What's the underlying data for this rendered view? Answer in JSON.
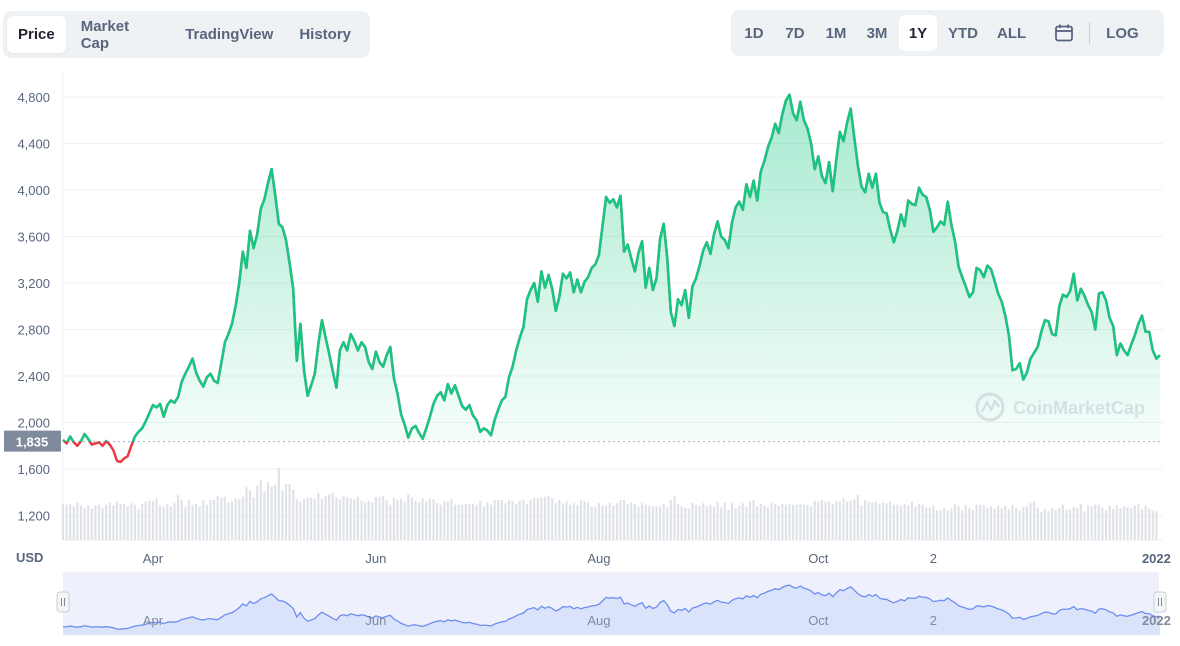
{
  "tabs": [
    "Price",
    "Market Cap",
    "TradingView",
    "History"
  ],
  "ranges": [
    "1D",
    "7D",
    "1M",
    "3M",
    "1Y",
    "YTD",
    "ALL"
  ],
  "log_label": "LOG",
  "currency_label": "USD",
  "watermark": "CoinMarketCap",
  "colors": {
    "up": "#16c784",
    "down": "#ea3943",
    "nav_line": "#6d8df0",
    "nav_fill": "#dbe3fb"
  },
  "chart_data": {
    "type": "area",
    "ylim": [
      1500,
      4900
    ],
    "yticks": [
      1200,
      1600,
      2000,
      2400,
      2800,
      3200,
      3600,
      4000,
      4400,
      4800
    ],
    "ytick_labels": [
      "1,200",
      "1,600",
      "2,000",
      "2,400",
      "2,800",
      "3,200",
      "3,600",
      "4,000",
      "4,400",
      "4,800"
    ],
    "reference_price": 1835,
    "reference_label": "1,835",
    "xtick_labels": [
      "Apr",
      "Jun",
      "Aug",
      "Oct",
      "2",
      "2022"
    ],
    "xtick_index": [
      25,
      87,
      149,
      210,
      242,
      304
    ],
    "price": [
      1850,
      1820,
      1880,
      1830,
      1800,
      1840,
      1900,
      1860,
      1810,
      1820,
      1830,
      1800,
      1840,
      1810,
      1760,
      1670,
      1660,
      1690,
      1710,
      1800,
      1880,
      1920,
      1950,
      2010,
      2080,
      2150,
      2130,
      2160,
      2050,
      2150,
      2190,
      2170,
      2220,
      2350,
      2420,
      2480,
      2550,
      2430,
      2360,
      2310,
      2390,
      2420,
      2360,
      2340,
      2510,
      2690,
      2760,
      2850,
      3000,
      3200,
      3470,
      3330,
      3650,
      3500,
      3620,
      3840,
      3920,
      4060,
      4180,
      3960,
      3710,
      3680,
      3570,
      3370,
      3150,
      2530,
      2850,
      2450,
      2230,
      2320,
      2420,
      2680,
      2880,
      2730,
      2590,
      2440,
      2300,
      2620,
      2690,
      2620,
      2760,
      2700,
      2620,
      2690,
      2650,
      2520,
      2460,
      2610,
      2520,
      2480,
      2580,
      2650,
      2380,
      2250,
      2070,
      1980,
      1870,
      1950,
      1970,
      1910,
      1860,
      1950,
      2050,
      2160,
      2230,
      2260,
      2190,
      2330,
      2250,
      2320,
      2230,
      2140,
      2110,
      2150,
      2060,
      2020,
      1920,
      1950,
      1930,
      1890,
      2020,
      2110,
      2190,
      2220,
      2390,
      2480,
      2620,
      2730,
      2820,
      3060,
      3140,
      3200,
      3040,
      3300,
      3160,
      3270,
      3150,
      2960,
      3080,
      3280,
      3240,
      3290,
      3120,
      3230,
      3120,
      3210,
      3250,
      3330,
      3360,
      3440,
      3690,
      3940,
      3890,
      3920,
      3850,
      3950,
      3470,
      3530,
      3410,
      3300,
      3460,
      3560,
      3160,
      3330,
      3140,
      3240,
      3580,
      3710,
      3420,
      2950,
      2830,
      3060,
      3010,
      3140,
      2900,
      3170,
      3240,
      3350,
      3480,
      3550,
      3450,
      3620,
      3730,
      3600,
      3570,
      3500,
      3720,
      3850,
      3900,
      3830,
      4050,
      3940,
      4080,
      3910,
      4160,
      4250,
      4370,
      4450,
      4570,
      4490,
      4650,
      4770,
      4820,
      4660,
      4600,
      4760,
      4600,
      4530,
      4400,
      4180,
      4290,
      4120,
      4060,
      4240,
      3990,
      4260,
      4500,
      4420,
      4580,
      4700,
      4450,
      4210,
      4030,
      3980,
      4140,
      4020,
      4140,
      3890,
      3810,
      3800,
      3660,
      3550,
      3650,
      3790,
      3690,
      3910,
      3880,
      3870,
      4020,
      3960,
      3940,
      3830,
      3640,
      3680,
      3730,
      3700,
      3900,
      3700,
      3560,
      3340,
      3250,
      3170,
      3080,
      3120,
      3330,
      3310,
      3250,
      3350,
      3320,
      3220,
      3110,
      3040,
      2920,
      2750,
      2450,
      2460,
      2510,
      2370,
      2430,
      2550,
      2600,
      2650,
      2780,
      2880,
      2870,
      2760,
      2750,
      3000,
      3100,
      3080,
      3130,
      3280,
      3050,
      3150,
      3090,
      3010,
      2950,
      2800,
      3110,
      3120,
      3050,
      2900,
      2830,
      2580,
      2680,
      2620,
      2580,
      2670,
      2750,
      2850,
      2920,
      2780,
      2780,
      2620,
      2550,
      2580
    ],
    "volume_relative": [
      0.45,
      0.44,
      0.45,
      0.42,
      0.47,
      0.43,
      0.4,
      0.43,
      0.39,
      0.43,
      0.44,
      0.4,
      0.44,
      0.47,
      0.43,
      0.48,
      0.45,
      0.45,
      0.42,
      0.46,
      0.44,
      0.39,
      0.45,
      0.48,
      0.49,
      0.49,
      0.52,
      0.43,
      0.42,
      0.45,
      0.42,
      0.46,
      0.56,
      0.5,
      0.41,
      0.5,
      0.44,
      0.45,
      0.42,
      0.5,
      0.44,
      0.5,
      0.5,
      0.55,
      0.53,
      0.54,
      0.47,
      0.48,
      0.52,
      0.51,
      0.54,
      0.66,
      0.62,
      0.53,
      0.68,
      0.75,
      0.61,
      0.72,
      0.67,
      0.69,
      0.9,
      0.62,
      0.7,
      0.7,
      0.63,
      0.51,
      0.48,
      0.51,
      0.53,
      0.53,
      0.51,
      0.59,
      0.52,
      0.55,
      0.57,
      0.59,
      0.53,
      0.51,
      0.55,
      0.53,
      0.52,
      0.51,
      0.54,
      0.49,
      0.47,
      0.49,
      0.47,
      0.54,
      0.54,
      0.55,
      0.5,
      0.44,
      0.53,
      0.5,
      0.52,
      0.48,
      0.57,
      0.53,
      0.49,
      0.47,
      0.52,
      0.49,
      0.52,
      0.51,
      0.46,
      0.44,
      0.48,
      0.48,
      0.51,
      0.44,
      0.44,
      0.44,
      0.45,
      0.45,
      0.45,
      0.44,
      0.49,
      0.42,
      0.47,
      0.44,
      0.5,
      0.5,
      0.5,
      0.46,
      0.5,
      0.49,
      0.45,
      0.49,
      0.5,
      0.45,
      0.51,
      0.53,
      0.52,
      0.53,
      0.54,
      0.55,
      0.52,
      0.46,
      0.5,
      0.46,
      0.49,
      0.44,
      0.46,
      0.44,
      0.5,
      0.48,
      0.47,
      0.42,
      0.41,
      0.46,
      0.43,
      0.43,
      0.47,
      0.43,
      0.46,
      0.5,
      0.5,
      0.45,
      0.47,
      0.45,
      0.41,
      0.46,
      0.44,
      0.43,
      0.42,
      0.42,
      0.42,
      0.45,
      0.41,
      0.5,
      0.55,
      0.45,
      0.42,
      0.4,
      0.39,
      0.47,
      0.44,
      0.43,
      0.46,
      0.42,
      0.44,
      0.42,
      0.48,
      0.41,
      0.47,
      0.38,
      0.46,
      0.4,
      0.43,
      0.46,
      0.42,
      0.48,
      0.5,
      0.42,
      0.45,
      0.43,
      0.41,
      0.46,
      0.45,
      0.43,
      0.45,
      0.44,
      0.45,
      0.44,
      0.44,
      0.45,
      0.44,
      0.44,
      0.42,
      0.49,
      0.48,
      0.5,
      0.48,
      0.48,
      0.45,
      0.48,
      0.48,
      0.52,
      0.48,
      0.49,
      0.51,
      0.56,
      0.43,
      0.5,
      0.48,
      0.47,
      0.48,
      0.45,
      0.47,
      0.46,
      0.48,
      0.44,
      0.44,
      0.43,
      0.45,
      0.43,
      0.48,
      0.42,
      0.45,
      0.44,
      0.4,
      0.41,
      0.43,
      0.37,
      0.37,
      0.4,
      0.37,
      0.39,
      0.45,
      0.42,
      0.37,
      0.44,
      0.4,
      0.38,
      0.44,
      0.44,
      0.43,
      0.4,
      0.42,
      0.39,
      0.43,
      0.4,
      0.42,
      0.38,
      0.44,
      0.4,
      0.37,
      0.41,
      0.42,
      0.46,
      0.48,
      0.4,
      0.35,
      0.39,
      0.36,
      0.4,
      0.38,
      0.4,
      0.44,
      0.38,
      0.38,
      0.41,
      0.4,
      0.45,
      0.36,
      0.43,
      0.42,
      0.44,
      0.44,
      0.4,
      0.37,
      0.43,
      0.39,
      0.43,
      0.4,
      0.42,
      0.41,
      0.4,
      0.43,
      0.45,
      0.39,
      0.43,
      0.39,
      0.37,
      0.36
    ]
  }
}
